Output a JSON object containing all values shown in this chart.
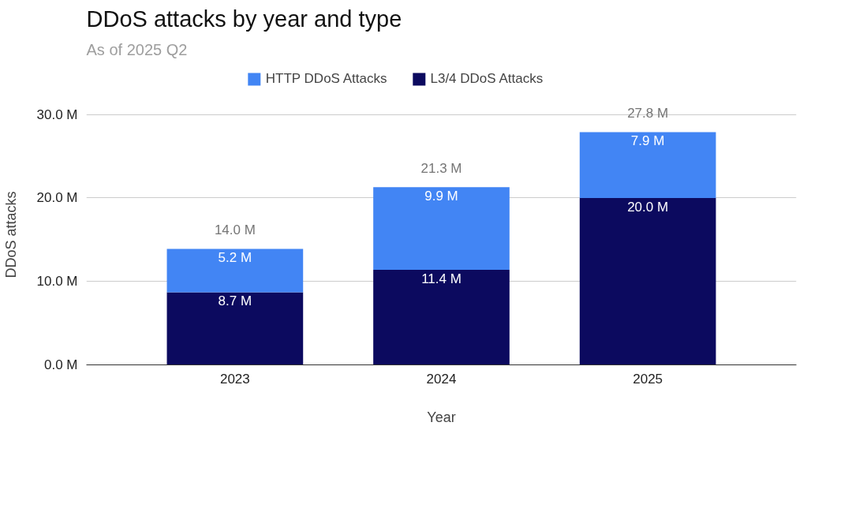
{
  "chart_data": {
    "type": "bar",
    "title": "DDoS attacks by year and type",
    "subtitle": "As of 2025 Q2",
    "xlabel": "Year",
    "ylabel": "DDoS attacks",
    "categories": [
      "2023",
      "2024",
      "2025"
    ],
    "stacked": true,
    "series": [
      {
        "name": "L3/4 DDoS Attacks",
        "color": "#0c0a5f",
        "values": [
          8.7,
          11.4,
          20.0
        ],
        "value_labels": [
          "8.7 M",
          "11.4 M",
          "20.0 M"
        ]
      },
      {
        "name": "HTTP DDoS Attacks",
        "color": "#4285f4",
        "values": [
          5.2,
          9.9,
          7.9
        ],
        "value_labels": [
          "5.2 M",
          "9.9 M",
          "7.9 M"
        ]
      }
    ],
    "totals": [
      "14.0 M",
      "21.3 M",
      "27.8 M"
    ],
    "ylim": [
      0,
      30
    ],
    "yticks": [
      {
        "value": 0,
        "label": "0.0 M"
      },
      {
        "value": 10,
        "label": "10.0 M"
      },
      {
        "value": 20,
        "label": "20.0 M"
      },
      {
        "value": 30,
        "label": "30.0 M"
      }
    ],
    "grid": "y",
    "legend": "top"
  }
}
